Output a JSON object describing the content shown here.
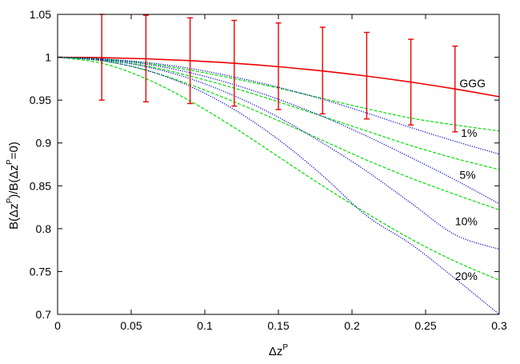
{
  "chart_data": {
    "type": "line",
    "title": "",
    "xlabel": {
      "base": "Δz",
      "sup": "P"
    },
    "ylabel": {
      "p1": "B(Δz",
      "sup1": "P",
      "p2": ")/B(Δz",
      "sup2": "P",
      "p3": "=0)"
    },
    "xlim": [
      0,
      0.3
    ],
    "ylim": [
      0.7,
      1.05
    ],
    "xticks": [
      0,
      0.05,
      0.1,
      0.15,
      0.2,
      0.25,
      0.3
    ],
    "xtick_labels": [
      "0",
      "0.05",
      "0.1",
      "0.15",
      "0.2",
      "0.25",
      "0.3"
    ],
    "yticks": [
      0.7,
      0.75,
      0.8,
      0.85,
      0.9,
      0.95,
      1,
      1.05
    ],
    "ytick_labels": [
      "0.7",
      "0.75",
      "0.8",
      "0.85",
      "0.9",
      "0.95",
      "1",
      "1.05"
    ],
    "grid": false,
    "colors": {
      "ggg": "#ee0000",
      "green": "#00dd00",
      "blue": "#0000cc",
      "errorbar": "#ee0000"
    },
    "series": [
      {
        "group": "ggg",
        "style": "solid",
        "color": "#ee0000",
        "x": [
          0,
          0.03,
          0.06,
          0.09,
          0.12,
          0.15,
          0.18,
          0.21,
          0.24,
          0.27,
          0.3
        ],
        "y": [
          1.0,
          0.9995,
          0.9982,
          0.996,
          0.993,
          0.989,
          0.984,
          0.978,
          0.971,
          0.963,
          0.954
        ]
      },
      {
        "group": "1%",
        "style": "dashed",
        "color": "#00dd00",
        "x": [
          0,
          0.03,
          0.06,
          0.09,
          0.12,
          0.15,
          0.18,
          0.21,
          0.24,
          0.27,
          0.3
        ],
        "y": [
          1.0,
          0.998,
          0.993,
          0.985,
          0.975,
          0.964,
          0.952,
          0.94,
          0.929,
          0.921,
          0.914
        ]
      },
      {
        "group": "1%",
        "style": "dotted",
        "color": "#0000cc",
        "x": [
          0,
          0.03,
          0.06,
          0.09,
          0.12,
          0.15,
          0.18,
          0.21,
          0.24,
          0.27,
          0.3
        ],
        "y": [
          1.0,
          0.998,
          0.994,
          0.987,
          0.977,
          0.965,
          0.951,
          0.935,
          0.918,
          0.902,
          0.887
        ]
      },
      {
        "group": "5%",
        "style": "dashed",
        "color": "#00dd00",
        "x": [
          0,
          0.03,
          0.06,
          0.09,
          0.12,
          0.15,
          0.18,
          0.21,
          0.24,
          0.27,
          0.3
        ],
        "y": [
          1.0,
          0.997,
          0.99,
          0.978,
          0.964,
          0.948,
          0.931,
          0.914,
          0.897,
          0.882,
          0.869
        ]
      },
      {
        "group": "5%",
        "style": "dotted",
        "color": "#0000cc",
        "x": [
          0,
          0.03,
          0.06,
          0.09,
          0.12,
          0.15,
          0.18,
          0.21,
          0.24,
          0.27,
          0.3
        ],
        "y": [
          1.0,
          0.998,
          0.992,
          0.982,
          0.968,
          0.951,
          0.931,
          0.908,
          0.883,
          0.857,
          0.829
        ]
      },
      {
        "group": "10%",
        "style": "dashed",
        "color": "#00dd00",
        "x": [
          0,
          0.03,
          0.06,
          0.09,
          0.12,
          0.15,
          0.18,
          0.21,
          0.24,
          0.27,
          0.3
        ],
        "y": [
          1.0,
          0.996,
          0.985,
          0.968,
          0.948,
          0.926,
          0.903,
          0.88,
          0.859,
          0.84,
          0.822
        ]
      },
      {
        "group": "10%",
        "style": "dotted",
        "color": "#0000cc",
        "x": [
          0,
          0.03,
          0.06,
          0.09,
          0.12,
          0.15,
          0.18,
          0.21,
          0.24,
          0.27,
          0.3
        ],
        "y": [
          1.0,
          0.997,
          0.989,
          0.975,
          0.955,
          0.93,
          0.9,
          0.867,
          0.83,
          0.793,
          0.776
        ]
      },
      {
        "group": "20%",
        "style": "dashed",
        "color": "#00dd00",
        "x": [
          0,
          0.03,
          0.06,
          0.09,
          0.12,
          0.15,
          0.18,
          0.21,
          0.24,
          0.27,
          0.3
        ],
        "y": [
          1.0,
          0.993,
          0.975,
          0.949,
          0.918,
          0.884,
          0.85,
          0.818,
          0.788,
          0.762,
          0.74
        ]
      },
      {
        "group": "20%",
        "style": "dotted",
        "color": "#0000cc",
        "x": [
          0,
          0.03,
          0.06,
          0.09,
          0.12,
          0.15,
          0.18,
          0.21,
          0.24,
          0.27,
          0.3
        ],
        "y": [
          1.0,
          0.996,
          0.985,
          0.966,
          0.939,
          0.904,
          0.862,
          0.815,
          0.782,
          0.742,
          0.7
        ]
      }
    ],
    "errorbars": {
      "x": [
        0.03,
        0.06,
        0.09,
        0.12,
        0.15,
        0.18,
        0.21,
        0.24,
        0.27
      ],
      "ylow": [
        0.95,
        0.948,
        0.946,
        0.943,
        0.939,
        0.934,
        0.928,
        0.921,
        0.913
      ],
      "yhigh": [
        1.05,
        1.049,
        1.046,
        1.043,
        1.04,
        1.035,
        1.029,
        1.021,
        1.013
      ]
    },
    "annotations": [
      {
        "text": "GGG",
        "x": 0.273,
        "y": 0.965
      },
      {
        "text": "1%",
        "x": 0.274,
        "y": 0.907
      },
      {
        "text": "5%",
        "x": 0.273,
        "y": 0.858
      },
      {
        "text": "10%",
        "x": 0.27,
        "y": 0.804
      },
      {
        "text": "20%",
        "x": 0.27,
        "y": 0.74
      }
    ]
  }
}
